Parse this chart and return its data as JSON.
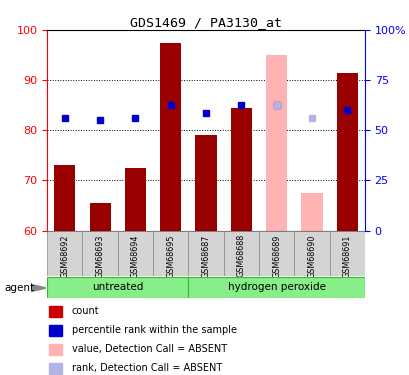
{
  "title": "GDS1469 / PA3130_at",
  "samples": [
    "GSM68692",
    "GSM68693",
    "GSM68694",
    "GSM68695",
    "GSM68687",
    "GSM68688",
    "GSM68689",
    "GSM68690",
    "GSM68691"
  ],
  "bar_values": [
    73,
    65.5,
    72.5,
    97.5,
    79,
    84.5,
    null,
    null,
    91.5
  ],
  "bar_absent_values": [
    null,
    null,
    null,
    null,
    null,
    null,
    95,
    67.5,
    null
  ],
  "rank_values": [
    82.5,
    82,
    82.5,
    85,
    83.5,
    85,
    85,
    null,
    84
  ],
  "rank_absent_values": [
    null,
    null,
    null,
    null,
    null,
    null,
    85,
    82.5,
    null
  ],
  "bar_color": "#990000",
  "bar_absent_color": "#ffb3b3",
  "rank_color": "#0000cc",
  "rank_absent_color": "#b3b3e6",
  "ylim": [
    60,
    100
  ],
  "yticks": [
    60,
    70,
    80,
    90,
    100
  ],
  "y2ticks": [
    0,
    25,
    50,
    75,
    100
  ],
  "y2labels": [
    "0",
    "25",
    "50",
    "75",
    "100%"
  ],
  "group1_label": "untreated",
  "group2_label": "hydrogen peroxide",
  "group1_indices": [
    0,
    1,
    2,
    3
  ],
  "group2_indices": [
    4,
    5,
    6,
    7,
    8
  ],
  "agent_label": "agent",
  "legend_items": [
    {
      "label": "count",
      "color": "#cc0000"
    },
    {
      "label": "percentile rank within the sample",
      "color": "#0000cc"
    },
    {
      "label": "value, Detection Call = ABSENT",
      "color": "#ffb3b3"
    },
    {
      "label": "rank, Detection Call = ABSENT",
      "color": "#b3b3e6"
    }
  ],
  "bar_width": 0.6,
  "marker_size": 5
}
